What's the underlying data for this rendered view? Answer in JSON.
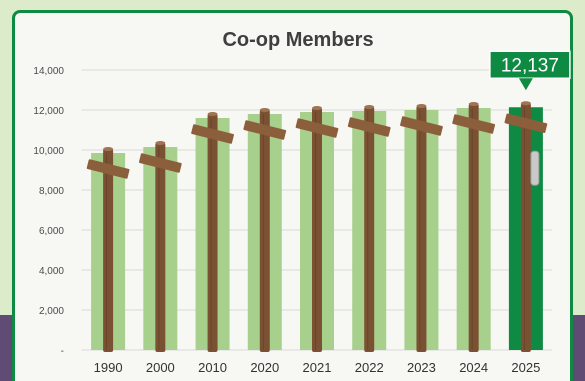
{
  "chart_data": {
    "type": "bar",
    "title": "Co-op Members",
    "categories": [
      "1990",
      "2000",
      "2010",
      "2020",
      "2021",
      "2022",
      "2023",
      "2024",
      "2025"
    ],
    "values": [
      9850,
      10150,
      11600,
      11800,
      11900,
      11950,
      12000,
      12100,
      12137
    ],
    "ylim": [
      0,
      14000
    ],
    "yticks": [
      0,
      2000,
      4000,
      6000,
      8000,
      10000,
      12000,
      14000
    ],
    "ytick_labels": [
      "-",
      "2,000",
      "4,000",
      "6,000",
      "8,000",
      "10,000",
      "12,000",
      "14,000"
    ],
    "grid": true,
    "highlight": {
      "category": "2025",
      "label": "12,137"
    },
    "colors": {
      "bar": "#a8d08d",
      "highlight_bar": "#0f8a43",
      "pole": "#7a5233",
      "crossarm": "#8b5e3c",
      "grid": "#d9d9d9",
      "frame": "#0f8a43"
    }
  }
}
